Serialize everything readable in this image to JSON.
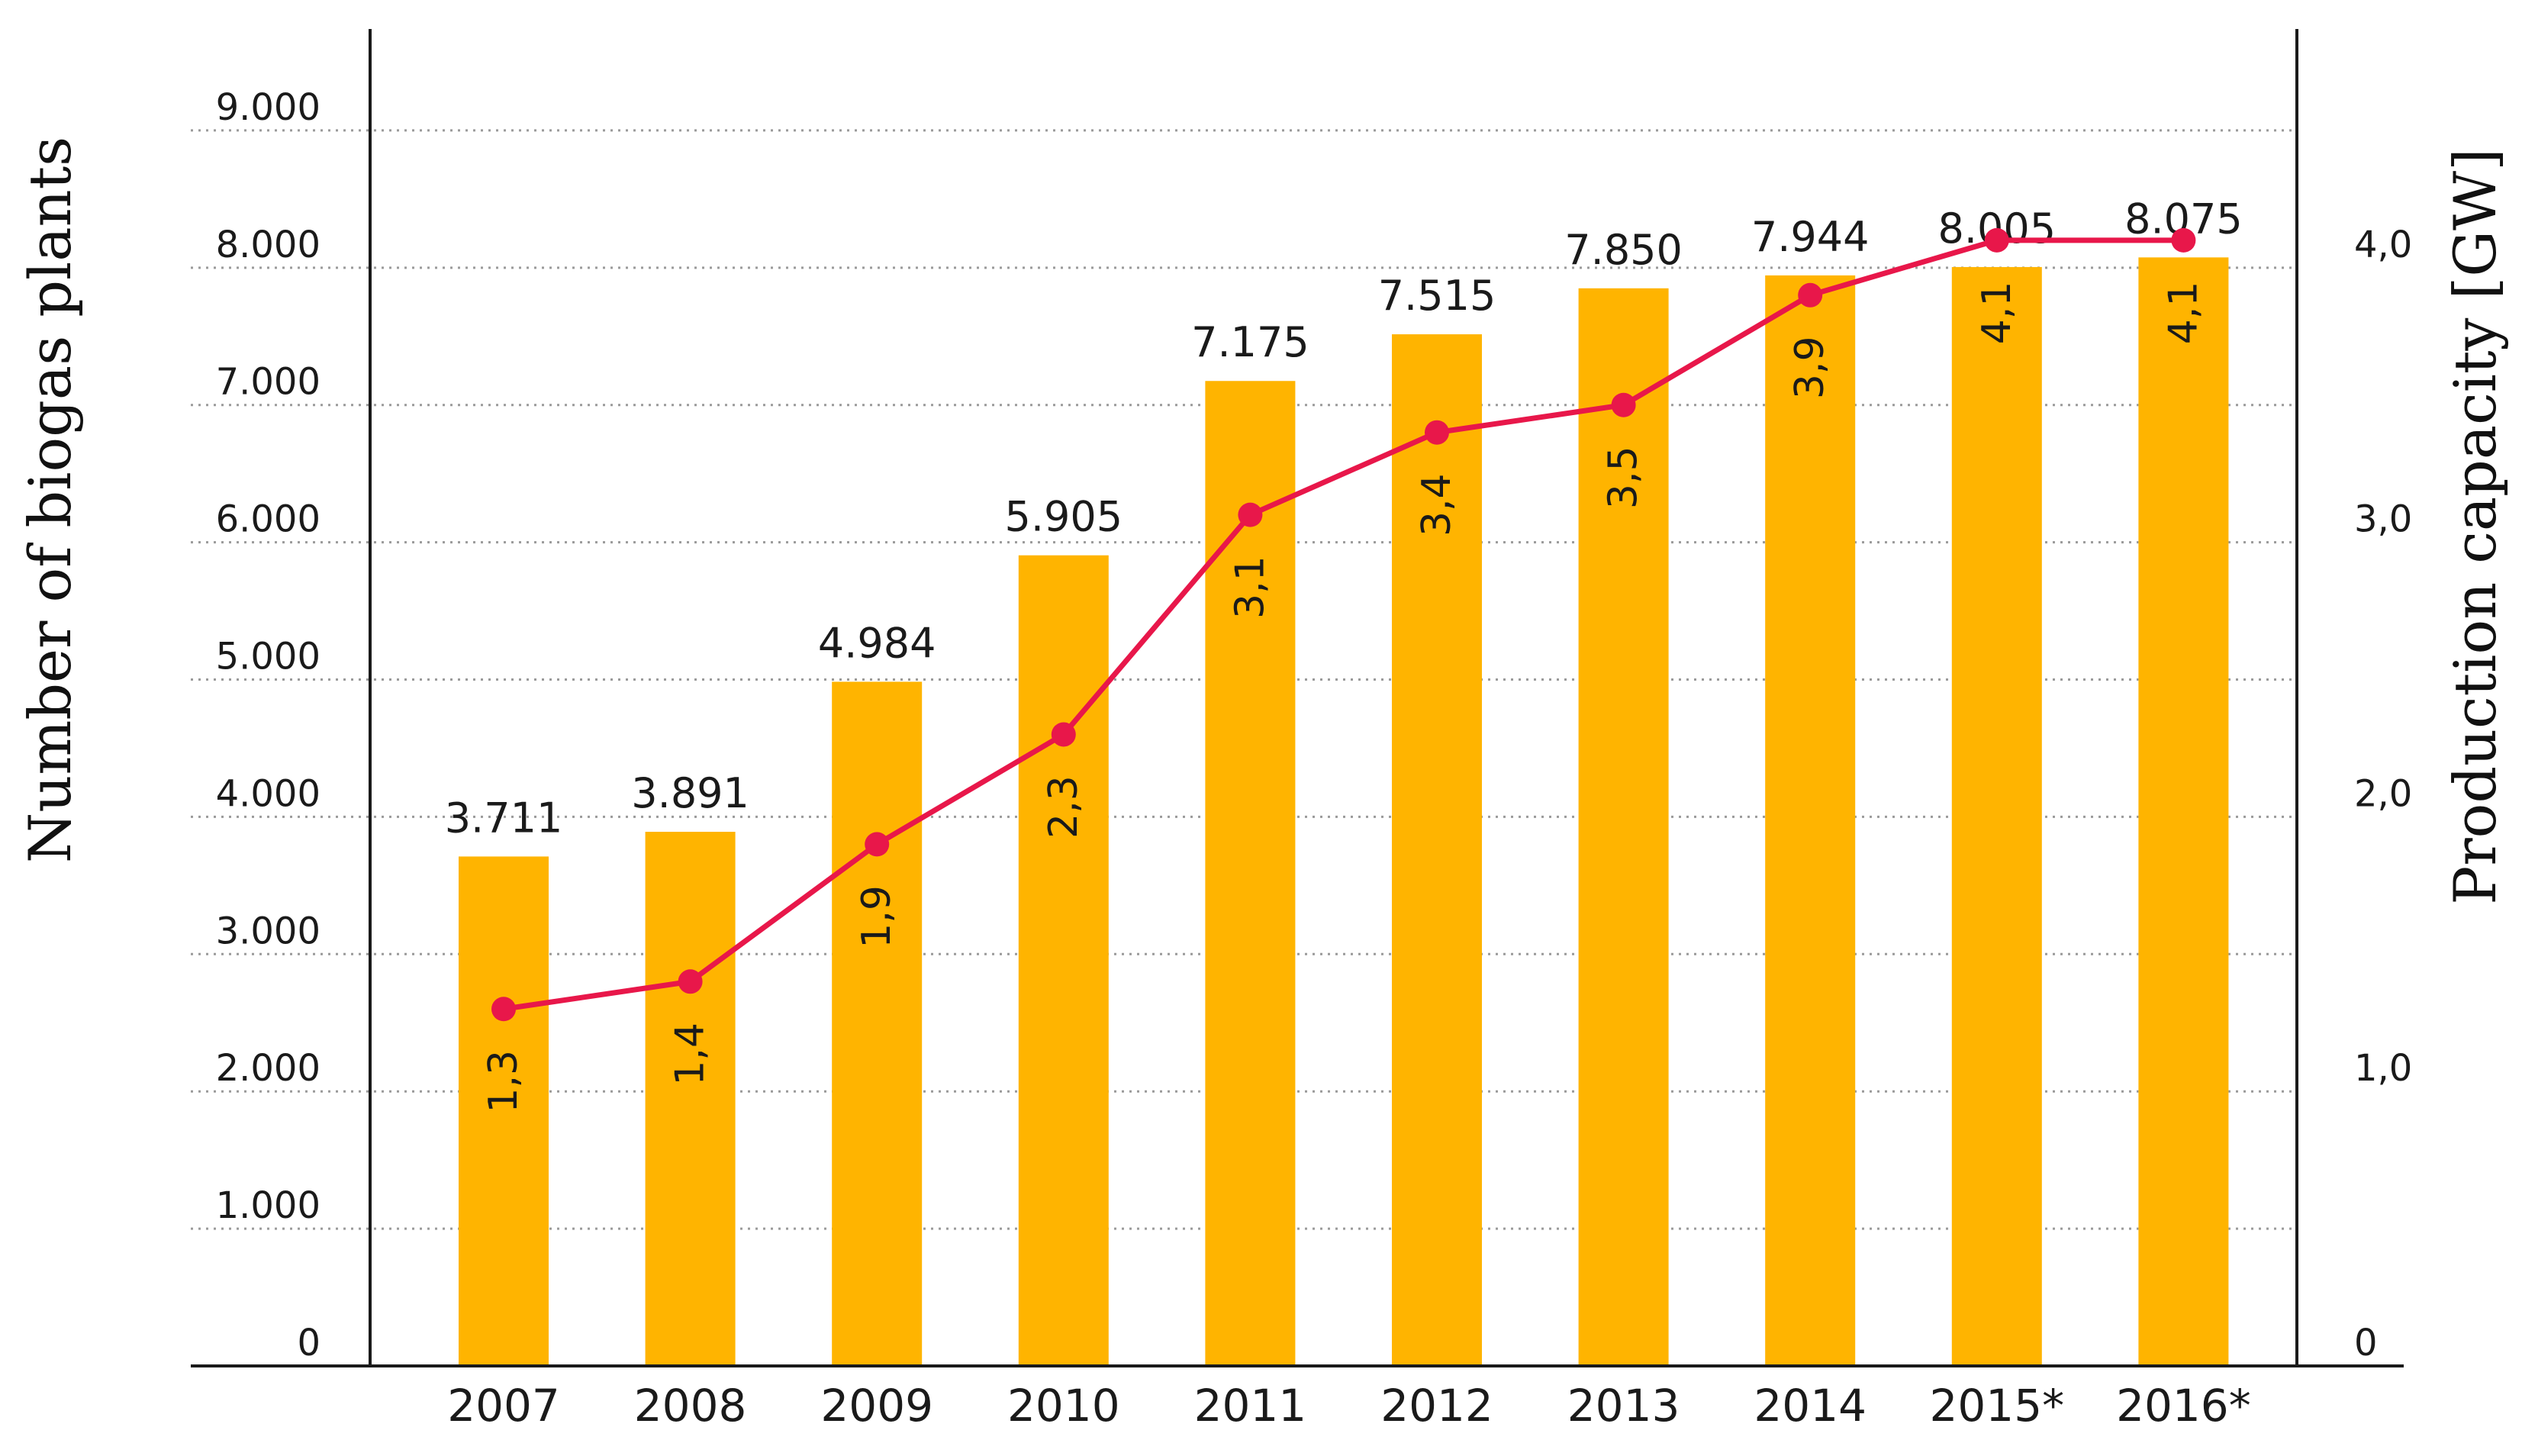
{
  "chart_data": {
    "type": "bar",
    "categories": [
      "2007",
      "2008",
      "2009",
      "2010",
      "2011",
      "2012",
      "2013",
      "2014",
      "2015*",
      "2016*"
    ],
    "series": [
      {
        "name": "Number of biogas plants",
        "type": "bar",
        "axis": "left",
        "values": [
          3711,
          3891,
          4984,
          5905,
          7175,
          7515,
          7850,
          7944,
          8005,
          8075
        ],
        "labels": [
          "3.711",
          "3.891",
          "4.984",
          "5.905",
          "7.175",
          "7.515",
          "7.850",
          "7.944",
          "8.005",
          "8.075"
        ],
        "color": "#FFB400"
      },
      {
        "name": "Production capacity [GW]",
        "type": "line",
        "axis": "right",
        "values": [
          1.3,
          1.4,
          1.9,
          2.3,
          3.1,
          3.4,
          3.5,
          3.9,
          4.1,
          4.1
        ],
        "labels": [
          "1,3",
          "1,4",
          "1,9",
          "2,3",
          "3,1",
          "3,4",
          "3,5",
          "3,9",
          "4,1",
          "4,1"
        ],
        "color": "#E8174A"
      }
    ],
    "ylabel": "Number of biogas plants",
    "ylabel_right": "Production capacity [GW]",
    "ylim": [
      0,
      9700
    ],
    "ylim_right": [
      0,
      4.85
    ],
    "yticks": [
      0,
      1000,
      2000,
      3000,
      4000,
      5000,
      6000,
      7000,
      8000,
      9000
    ],
    "yticks_labels": [
      "0",
      "1.000",
      "2.000",
      "3.000",
      "4.000",
      "5.000",
      "6.000",
      "7.000",
      "8.000",
      "9.000"
    ],
    "yticks_right": [
      0,
      1,
      2,
      3,
      4
    ],
    "yticks_right_labels": [
      "0",
      "1,0",
      "2,0",
      "3,0",
      "4,0"
    ],
    "grid": true,
    "grid_color": "#9a9a9a",
    "axis_color": "#1a1a1a"
  }
}
